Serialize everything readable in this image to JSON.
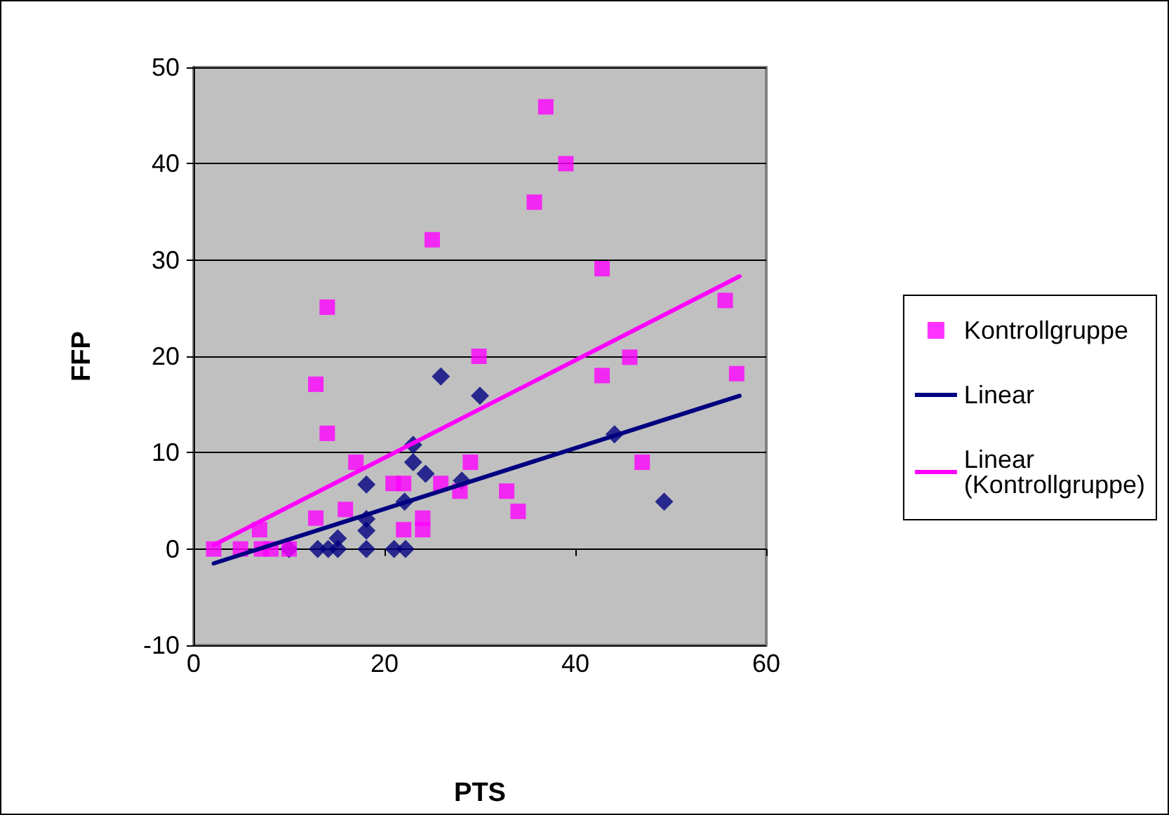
{
  "chart_data": {
    "type": "scatter",
    "xlabel": "PTS",
    "ylabel": "FFP",
    "xlim": [
      0,
      60
    ],
    "ylim": [
      -10,
      50
    ],
    "xticks": [
      0,
      20,
      40,
      60
    ],
    "yticks": [
      -10,
      0,
      10,
      20,
      30,
      40,
      50
    ],
    "grid": "y",
    "legend": "right",
    "series": [
      {
        "color": "#000080",
        "marker": "diamond",
        "x": [
          10,
          13,
          14.1,
          15.1,
          15.1,
          18.1,
          18.1,
          18.1,
          18.1,
          21,
          22.2,
          22.1,
          23,
          23,
          24.3,
          25.9,
          28.1,
          30,
          44.1,
          49.3
        ],
        "values": [
          0,
          0,
          0,
          0,
          1.1,
          0,
          1.9,
          3.1,
          6.7,
          0,
          0,
          4.9,
          10.8,
          9,
          7.8,
          17.9,
          7.1,
          15.9,
          11.9,
          4.9
        ]
      },
      {
        "name": "Kontrollgruppe",
        "color": "#ff00ff",
        "marker": "square",
        "x": [
          2.1,
          4.9,
          6.9,
          7.1,
          8.1,
          10,
          12.8,
          12.8,
          14,
          14,
          15.9,
          17,
          20.9,
          22,
          22,
          24,
          24,
          25,
          25.9,
          27.9,
          29,
          29.9,
          32.8,
          34,
          35.7,
          36.9,
          39,
          42.8,
          42.8,
          45.7,
          47,
          55.7,
          56.9
        ],
        "values": [
          0,
          0,
          2,
          0,
          0,
          0,
          3.2,
          17.1,
          25.1,
          12,
          4.1,
          9,
          6.8,
          6.8,
          2,
          2,
          3.2,
          32.1,
          6.8,
          6,
          9,
          20,
          6,
          3.9,
          36,
          45.9,
          40,
          29.1,
          18,
          19.9,
          9,
          25.8,
          18.2
        ]
      },
      {
        "name": "Linear",
        "type": "line",
        "color": "#000080",
        "marker": "none",
        "line_style": "solid",
        "x": [
          2.1,
          57.2
        ],
        "values": [
          -1.5,
          15.9
        ]
      },
      {
        "name": "Linear (Kontrollgruppe)",
        "type": "line",
        "color": "#ff00ff",
        "marker": "none",
        "line_style": "solid",
        "x": [
          2.1,
          57.2
        ],
        "values": [
          0.4,
          28.3
        ]
      }
    ]
  }
}
